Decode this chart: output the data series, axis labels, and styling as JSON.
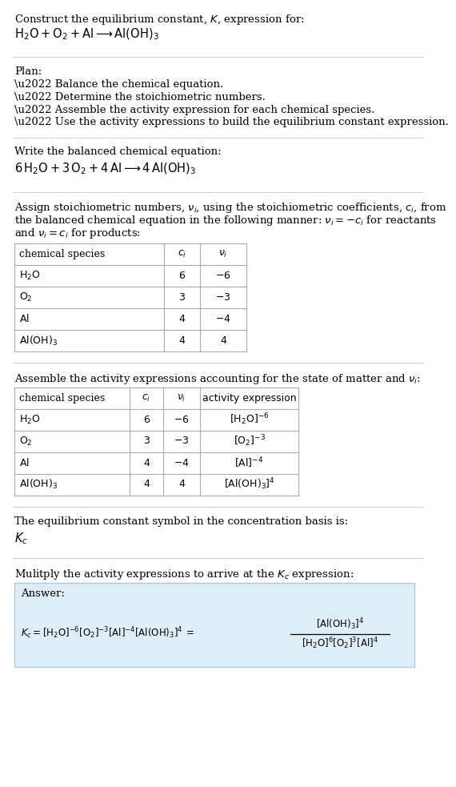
{
  "title_line1": "Construct the equilibrium constant, $K$, expression for:",
  "title_line2": "$\\mathrm{H_2O + O_2 + Al} \\longrightarrow \\mathrm{Al(OH)_3}$",
  "plan_header": "Plan:",
  "plan_items": [
    "\\u2022 Balance the chemical equation.",
    "\\u2022 Determine the stoichiometric numbers.",
    "\\u2022 Assemble the activity expression for each chemical species.",
    "\\u2022 Use the activity expressions to build the equilibrium constant expression."
  ],
  "balanced_header": "Write the balanced chemical equation:",
  "balanced_eq": "$6\\,\\mathrm{H_2O} + 3\\,\\mathrm{O_2} + 4\\,\\mathrm{Al} \\longrightarrow 4\\,\\mathrm{Al(OH)_3}$",
  "table1_headers": [
    "chemical species",
    "$c_i$",
    "$\\nu_i$"
  ],
  "table1_rows": [
    [
      "$\\mathrm{H_2O}$",
      "6",
      "$-6$"
    ],
    [
      "$\\mathrm{O_2}$",
      "3",
      "$-3$"
    ],
    [
      "$\\mathrm{Al}$",
      "4",
      "$-4$"
    ],
    [
      "$\\mathrm{Al(OH)_3}$",
      "4",
      "4"
    ]
  ],
  "activity_header": "Assemble the activity expressions accounting for the state of matter and $\\nu_i$:",
  "table2_headers": [
    "chemical species",
    "$c_i$",
    "$\\nu_i$",
    "activity expression"
  ],
  "table2_rows": [
    [
      "$\\mathrm{H_2O}$",
      "6",
      "$-6$",
      "$[\\mathrm{H_2O}]^{-6}$"
    ],
    [
      "$\\mathrm{O_2}$",
      "3",
      "$-3$",
      "$[\\mathrm{O_2}]^{-3}$"
    ],
    [
      "$\\mathrm{Al}$",
      "4",
      "$-4$",
      "$[\\mathrm{Al}]^{-4}$"
    ],
    [
      "$\\mathrm{Al(OH)_3}$",
      "4",
      "4",
      "$[\\mathrm{Al(OH)_3}]^{4}$"
    ]
  ],
  "kc_header": "The equilibrium constant symbol in the concentration basis is:",
  "kc_symbol": "$K_c$",
  "multiply_header": "Mulitply the activity expressions to arrive at the $K_c$ expression:",
  "answer_label": "Answer:",
  "bg_color": "#ffffff",
  "answer_box_color": "#ddeef7",
  "answer_box_border": "#aacce0",
  "text_color": "#000000",
  "table_line_color": "#aaaaaa",
  "section_line_color": "#cccccc",
  "stoich_line1": "Assign stoichiometric numbers, $\\nu_i$, using the stoichiometric coefficients, $c_i$, from",
  "stoich_line2": "the balanced chemical equation in the following manner: $\\nu_i = -c_i$ for reactants",
  "stoich_line3": "and $\\nu_i = c_i$ for products:"
}
